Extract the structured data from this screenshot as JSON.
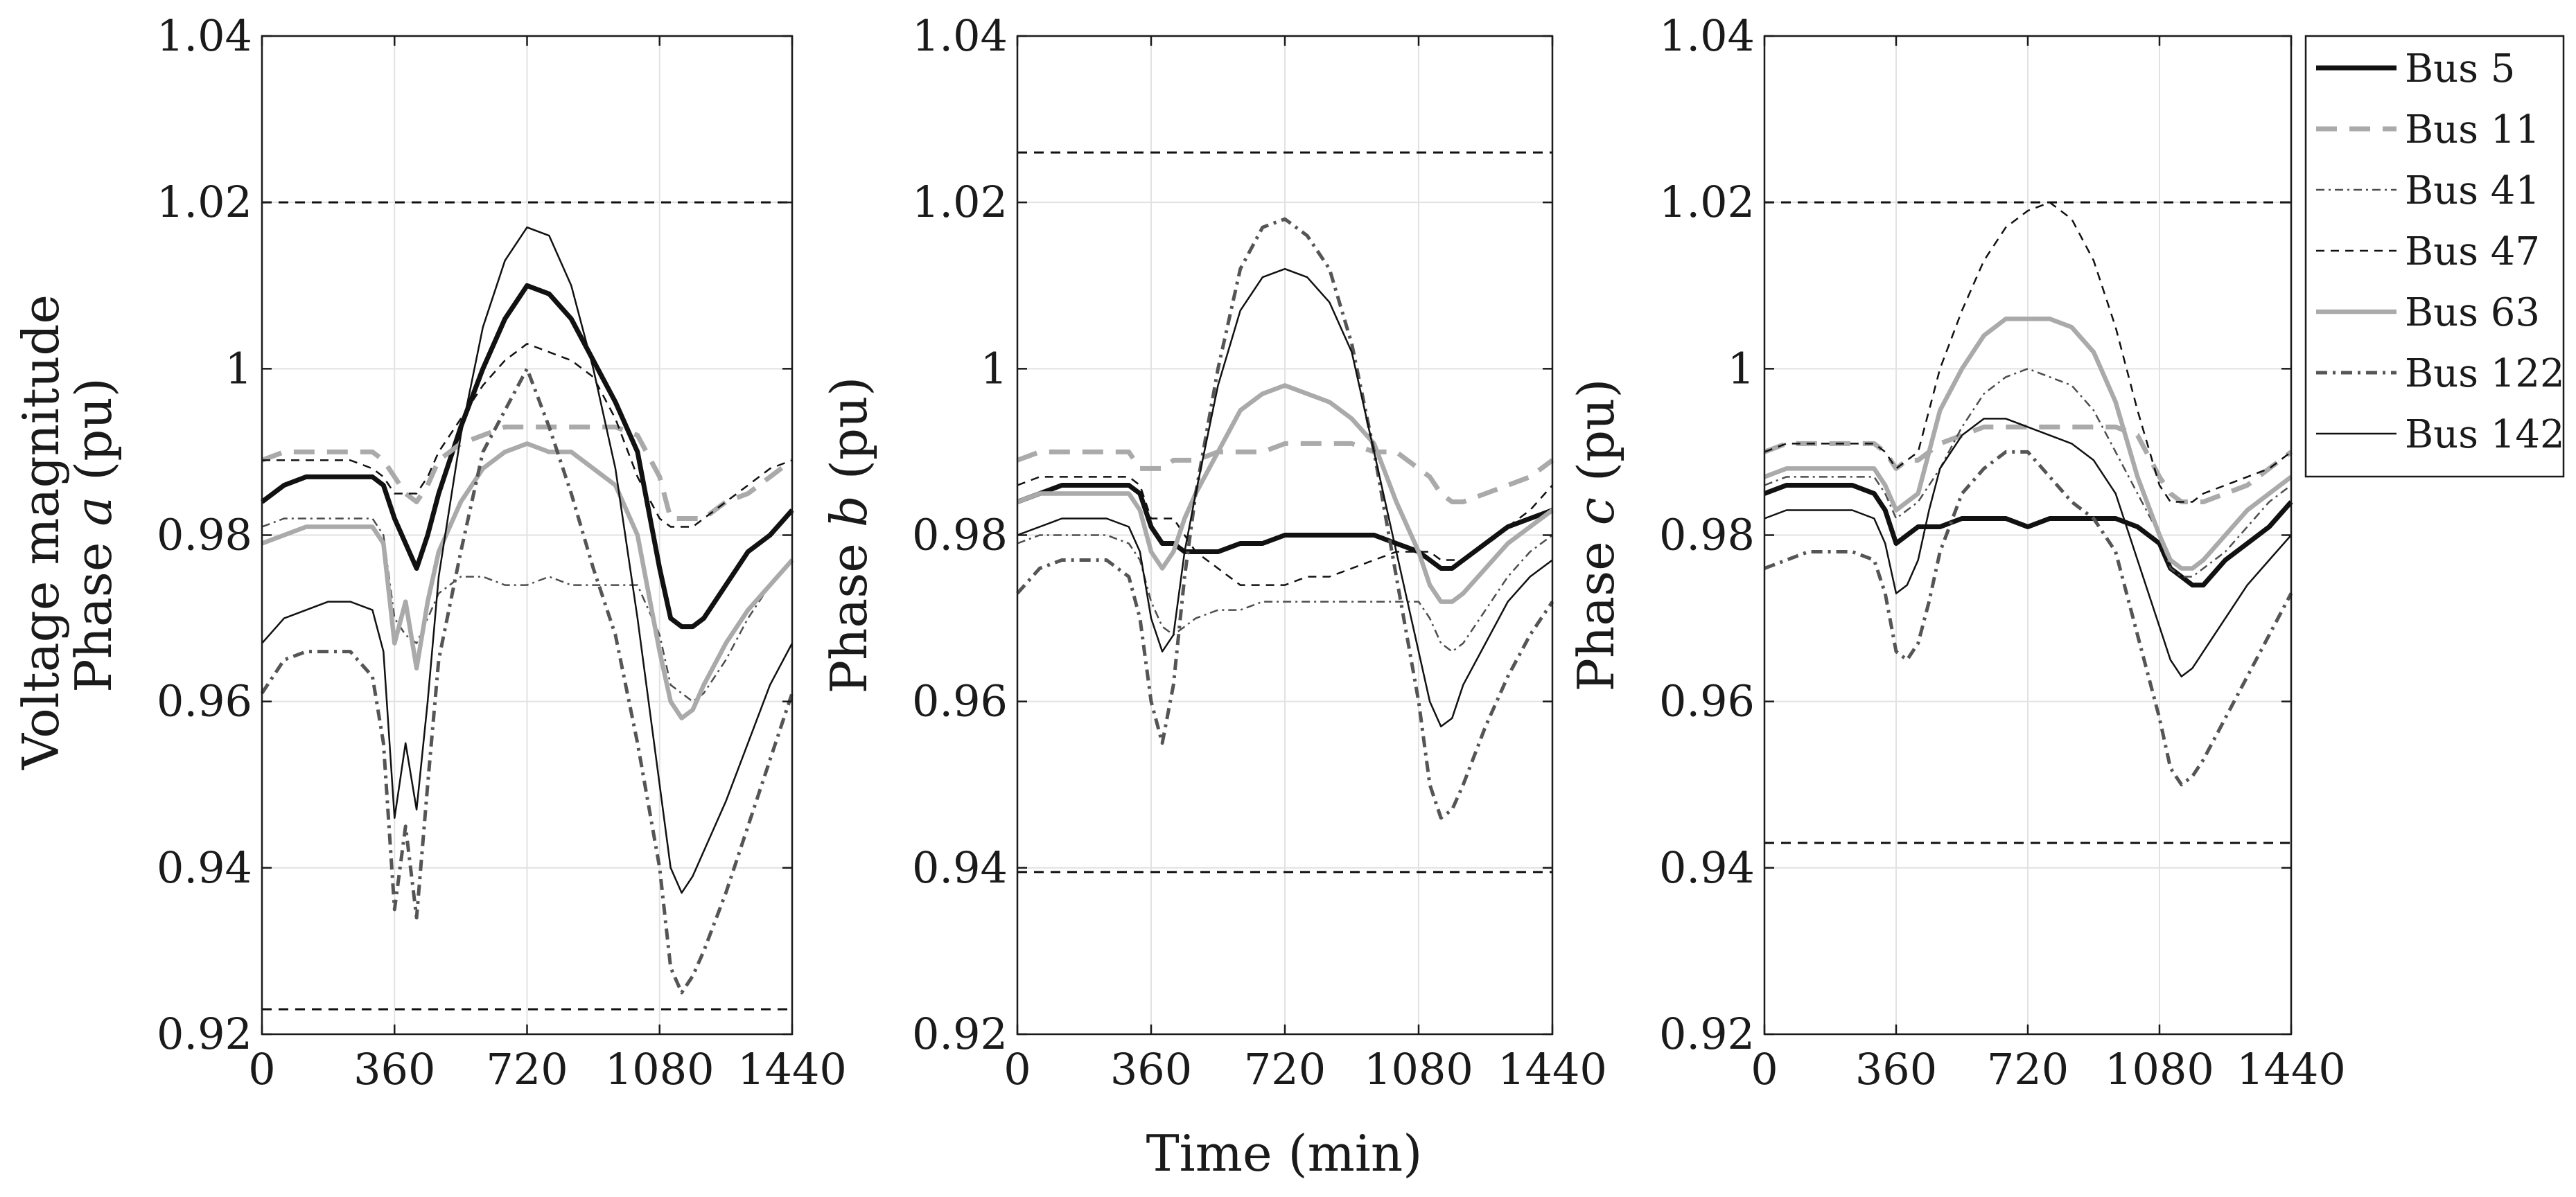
{
  "figure": {
    "ylabel_main": "Voltage magnitude",
    "xlabel": "Time (min)"
  },
  "chart_data": [
    {
      "type": "line",
      "panel": "a",
      "ylabel": "Phase a (pu)",
      "ylabel_prefix": "Phase ",
      "ylabel_phase": "a",
      "ylabel_suffix": " (pu)",
      "xlim": [
        0,
        1440
      ],
      "ylim": [
        0.92,
        1.04
      ],
      "xticks": [
        "0",
        "360",
        "720",
        "1080",
        "1440"
      ],
      "yticks": [
        "0.92",
        "0.94",
        "0.96",
        "0.98",
        "1",
        "1.02",
        "1.04"
      ],
      "grid": true,
      "limits": [
        1.02,
        0.923
      ],
      "x": [
        0,
        60,
        120,
        180,
        240,
        300,
        330,
        360,
        390,
        420,
        450,
        480,
        540,
        600,
        660,
        720,
        780,
        840,
        900,
        960,
        1020,
        1080,
        1110,
        1140,
        1170,
        1200,
        1260,
        1320,
        1380,
        1440
      ],
      "series": [
        {
          "name": "Bus 5",
          "values": [
            0.984,
            0.986,
            0.987,
            0.987,
            0.987,
            0.987,
            0.986,
            0.982,
            0.979,
            0.976,
            0.98,
            0.985,
            0.993,
            1.0,
            1.006,
            1.01,
            1.009,
            1.006,
            1.001,
            0.996,
            0.99,
            0.976,
            0.97,
            0.969,
            0.969,
            0.97,
            0.974,
            0.978,
            0.98,
            0.983
          ]
        },
        {
          "name": "Bus 11",
          "values": [
            0.989,
            0.99,
            0.99,
            0.99,
            0.99,
            0.99,
            0.989,
            0.987,
            0.985,
            0.984,
            0.986,
            0.989,
            0.991,
            0.992,
            0.993,
            0.993,
            0.993,
            0.993,
            0.993,
            0.993,
            0.992,
            0.987,
            0.982,
            0.982,
            0.982,
            0.982,
            0.984,
            0.985,
            0.987,
            0.989
          ]
        },
        {
          "name": "Bus 41",
          "values": [
            0.981,
            0.982,
            0.982,
            0.982,
            0.982,
            0.982,
            0.98,
            0.97,
            0.968,
            0.967,
            0.97,
            0.973,
            0.975,
            0.975,
            0.974,
            0.974,
            0.975,
            0.974,
            0.974,
            0.974,
            0.974,
            0.968,
            0.962,
            0.961,
            0.96,
            0.961,
            0.965,
            0.97,
            0.974,
            0.977
          ]
        },
        {
          "name": "Bus 47",
          "values": [
            0.989,
            0.989,
            0.989,
            0.989,
            0.989,
            0.988,
            0.987,
            0.985,
            0.985,
            0.985,
            0.987,
            0.99,
            0.994,
            0.998,
            1.001,
            1.003,
            1.002,
            1.001,
            0.999,
            0.994,
            0.987,
            0.982,
            0.981,
            0.981,
            0.981,
            0.982,
            0.984,
            0.986,
            0.988,
            0.989
          ]
        },
        {
          "name": "Bus 63",
          "values": [
            0.979,
            0.98,
            0.981,
            0.981,
            0.981,
            0.981,
            0.979,
            0.967,
            0.972,
            0.964,
            0.972,
            0.978,
            0.984,
            0.988,
            0.99,
            0.991,
            0.99,
            0.99,
            0.988,
            0.986,
            0.98,
            0.966,
            0.96,
            0.958,
            0.959,
            0.962,
            0.967,
            0.971,
            0.974,
            0.977
          ]
        },
        {
          "name": "Bus 122",
          "values": [
            0.961,
            0.965,
            0.966,
            0.966,
            0.966,
            0.963,
            0.955,
            0.935,
            0.945,
            0.934,
            0.95,
            0.965,
            0.978,
            0.99,
            0.995,
            1.0,
            0.993,
            0.985,
            0.976,
            0.968,
            0.955,
            0.94,
            0.928,
            0.925,
            0.927,
            0.93,
            0.937,
            0.945,
            0.953,
            0.961
          ]
        },
        {
          "name": "Bus 142",
          "values": [
            0.967,
            0.97,
            0.971,
            0.972,
            0.972,
            0.971,
            0.966,
            0.946,
            0.955,
            0.947,
            0.96,
            0.975,
            0.992,
            1.005,
            1.013,
            1.017,
            1.016,
            1.01,
            1.0,
            0.988,
            0.97,
            0.95,
            0.94,
            0.937,
            0.939,
            0.942,
            0.948,
            0.955,
            0.962,
            0.967
          ]
        }
      ]
    },
    {
      "type": "line",
      "panel": "b",
      "ylabel": "Phase b (pu)",
      "ylabel_prefix": "Phase ",
      "ylabel_phase": "b",
      "ylabel_suffix": " (pu)",
      "xlim": [
        0,
        1440
      ],
      "ylim": [
        0.92,
        1.04
      ],
      "xticks": [
        "0",
        "360",
        "720",
        "1080",
        "1440"
      ],
      "yticks": [
        "0.92",
        "0.94",
        "0.96",
        "0.98",
        "1",
        "1.02",
        "1.04"
      ],
      "grid": true,
      "limits": [
        1.026,
        0.9395
      ],
      "x": [
        0,
        60,
        120,
        180,
        240,
        300,
        330,
        360,
        390,
        420,
        450,
        480,
        540,
        600,
        660,
        720,
        780,
        840,
        900,
        960,
        1020,
        1080,
        1110,
        1140,
        1170,
        1200,
        1260,
        1320,
        1380,
        1440
      ],
      "series": [
        {
          "name": "Bus 5",
          "values": [
            0.984,
            0.985,
            0.986,
            0.986,
            0.986,
            0.986,
            0.985,
            0.981,
            0.979,
            0.979,
            0.978,
            0.978,
            0.978,
            0.979,
            0.979,
            0.98,
            0.98,
            0.98,
            0.98,
            0.98,
            0.979,
            0.978,
            0.977,
            0.976,
            0.976,
            0.977,
            0.979,
            0.981,
            0.982,
            0.983
          ]
        },
        {
          "name": "Bus 11",
          "values": [
            0.989,
            0.99,
            0.99,
            0.99,
            0.99,
            0.99,
            0.988,
            0.988,
            0.988,
            0.989,
            0.989,
            0.989,
            0.99,
            0.99,
            0.99,
            0.991,
            0.991,
            0.991,
            0.991,
            0.99,
            0.99,
            0.988,
            0.987,
            0.985,
            0.984,
            0.984,
            0.985,
            0.986,
            0.987,
            0.989
          ]
        },
        {
          "name": "Bus 41",
          "values": [
            0.979,
            0.98,
            0.98,
            0.98,
            0.98,
            0.979,
            0.977,
            0.972,
            0.969,
            0.968,
            0.969,
            0.97,
            0.971,
            0.971,
            0.972,
            0.972,
            0.972,
            0.972,
            0.972,
            0.972,
            0.972,
            0.972,
            0.97,
            0.967,
            0.966,
            0.967,
            0.971,
            0.975,
            0.978,
            0.98
          ]
        },
        {
          "name": "Bus 47",
          "values": [
            0.986,
            0.987,
            0.987,
            0.987,
            0.987,
            0.987,
            0.986,
            0.982,
            0.982,
            0.982,
            0.98,
            0.978,
            0.976,
            0.974,
            0.974,
            0.974,
            0.975,
            0.975,
            0.976,
            0.977,
            0.978,
            0.978,
            0.978,
            0.977,
            0.977,
            0.977,
            0.979,
            0.981,
            0.983,
            0.986
          ]
        },
        {
          "name": "Bus 63",
          "values": [
            0.984,
            0.985,
            0.985,
            0.985,
            0.985,
            0.985,
            0.983,
            0.978,
            0.976,
            0.978,
            0.982,
            0.985,
            0.99,
            0.995,
            0.997,
            0.998,
            0.997,
            0.996,
            0.994,
            0.991,
            0.984,
            0.978,
            0.974,
            0.972,
            0.972,
            0.973,
            0.976,
            0.979,
            0.981,
            0.983
          ]
        },
        {
          "name": "Bus 122",
          "values": [
            0.973,
            0.976,
            0.977,
            0.977,
            0.977,
            0.975,
            0.97,
            0.96,
            0.955,
            0.962,
            0.975,
            0.985,
            1.0,
            1.012,
            1.017,
            1.018,
            1.016,
            1.012,
            1.003,
            0.99,
            0.975,
            0.96,
            0.95,
            0.946,
            0.947,
            0.95,
            0.957,
            0.963,
            0.968,
            0.972
          ]
        },
        {
          "name": "Bus 142",
          "values": [
            0.98,
            0.981,
            0.982,
            0.982,
            0.982,
            0.981,
            0.978,
            0.97,
            0.966,
            0.968,
            0.978,
            0.985,
            0.998,
            1.007,
            1.011,
            1.012,
            1.011,
            1.008,
            1.002,
            0.99,
            0.978,
            0.966,
            0.96,
            0.957,
            0.958,
            0.962,
            0.967,
            0.972,
            0.975,
            0.977
          ]
        }
      ]
    },
    {
      "type": "line",
      "panel": "c",
      "ylabel": "Phase c (pu)",
      "ylabel_prefix": "Phase ",
      "ylabel_phase": "c",
      "ylabel_suffix": " (pu)",
      "xlim": [
        0,
        1440
      ],
      "ylim": [
        0.92,
        1.04
      ],
      "xticks": [
        "0",
        "360",
        "720",
        "1080",
        "1440"
      ],
      "yticks": [
        "0.92",
        "0.94",
        "0.96",
        "0.98",
        "1",
        "1.02",
        "1.04"
      ],
      "grid": true,
      "limits": [
        1.02,
        0.943
      ],
      "x": [
        0,
        60,
        120,
        180,
        240,
        300,
        330,
        360,
        390,
        420,
        450,
        480,
        540,
        600,
        660,
        720,
        780,
        840,
        900,
        960,
        1020,
        1080,
        1110,
        1140,
        1170,
        1200,
        1260,
        1320,
        1380,
        1440
      ],
      "series": [
        {
          "name": "Bus 5",
          "values": [
            0.985,
            0.986,
            0.986,
            0.986,
            0.986,
            0.985,
            0.983,
            0.979,
            0.98,
            0.981,
            0.981,
            0.981,
            0.982,
            0.982,
            0.982,
            0.981,
            0.982,
            0.982,
            0.982,
            0.982,
            0.981,
            0.979,
            0.976,
            0.975,
            0.974,
            0.974,
            0.977,
            0.979,
            0.981,
            0.984
          ]
        },
        {
          "name": "Bus 11",
          "values": [
            0.99,
            0.991,
            0.991,
            0.991,
            0.991,
            0.991,
            0.99,
            0.988,
            0.989,
            0.989,
            0.99,
            0.991,
            0.992,
            0.993,
            0.993,
            0.993,
            0.993,
            0.993,
            0.993,
            0.993,
            0.992,
            0.987,
            0.985,
            0.984,
            0.984,
            0.984,
            0.985,
            0.986,
            0.988,
            0.99
          ]
        },
        {
          "name": "Bus 41",
          "values": [
            0.986,
            0.987,
            0.987,
            0.987,
            0.987,
            0.987,
            0.985,
            0.982,
            0.983,
            0.984,
            0.986,
            0.988,
            0.993,
            0.997,
            0.999,
            1.0,
            0.999,
            0.998,
            0.995,
            0.99,
            0.985,
            0.98,
            0.976,
            0.975,
            0.975,
            0.976,
            0.978,
            0.981,
            0.984,
            0.986
          ]
        },
        {
          "name": "Bus 47",
          "values": [
            0.99,
            0.991,
            0.991,
            0.991,
            0.991,
            0.991,
            0.99,
            0.988,
            0.989,
            0.99,
            0.995,
            1.0,
            1.007,
            1.013,
            1.017,
            1.019,
            1.02,
            1.018,
            1.013,
            1.005,
            0.995,
            0.986,
            0.984,
            0.984,
            0.984,
            0.985,
            0.986,
            0.987,
            0.988,
            0.99
          ]
        },
        {
          "name": "Bus 63",
          "values": [
            0.987,
            0.988,
            0.988,
            0.988,
            0.988,
            0.988,
            0.986,
            0.983,
            0.984,
            0.985,
            0.99,
            0.995,
            1.0,
            1.004,
            1.006,
            1.006,
            1.006,
            1.005,
            1.002,
            0.996,
            0.987,
            0.98,
            0.977,
            0.976,
            0.976,
            0.977,
            0.98,
            0.983,
            0.985,
            0.987
          ]
        },
        {
          "name": "Bus 122",
          "values": [
            0.976,
            0.977,
            0.978,
            0.978,
            0.978,
            0.977,
            0.973,
            0.966,
            0.965,
            0.967,
            0.972,
            0.978,
            0.985,
            0.988,
            0.99,
            0.99,
            0.987,
            0.984,
            0.982,
            0.978,
            0.968,
            0.958,
            0.952,
            0.95,
            0.951,
            0.953,
            0.958,
            0.963,
            0.968,
            0.973
          ]
        },
        {
          "name": "Bus 142",
          "values": [
            0.982,
            0.983,
            0.983,
            0.983,
            0.983,
            0.982,
            0.979,
            0.973,
            0.974,
            0.977,
            0.983,
            0.988,
            0.992,
            0.994,
            0.994,
            0.993,
            0.992,
            0.991,
            0.989,
            0.985,
            0.977,
            0.969,
            0.965,
            0.963,
            0.964,
            0.966,
            0.97,
            0.974,
            0.977,
            0.98
          ]
        }
      ]
    }
  ],
  "legend": {
    "placement": "right",
    "entries": [
      "Bus 5",
      "Bus 11",
      "Bus 41",
      "Bus 47",
      "Bus 63",
      "Bus 122",
      "Bus 142"
    ]
  },
  "styles": {
    "Bus 5": {
      "color": "#111111",
      "dash": "none",
      "width": 7
    },
    "Bus 11": {
      "color": "#aaaaaa",
      "dash": "30,18",
      "width": 7
    },
    "Bus 41": {
      "color": "#4d4d4d",
      "dash": "12,6,3,6",
      "width": 2.5
    },
    "Bus 47": {
      "color": "#111111",
      "dash": "12,9",
      "width": 2.5
    },
    "Bus 63": {
      "color": "#aaaaaa",
      "dash": "none",
      "width": 6.5
    },
    "Bus 122": {
      "color": "#555555",
      "dash": "16,8,4,8",
      "width": 5
    },
    "Bus 142": {
      "color": "#111111",
      "dash": "none",
      "width": 2.5
    }
  },
  "colors": {
    "axis": "#1a1a1a",
    "grid": "#e2e2e2",
    "limit": "#111111"
  }
}
